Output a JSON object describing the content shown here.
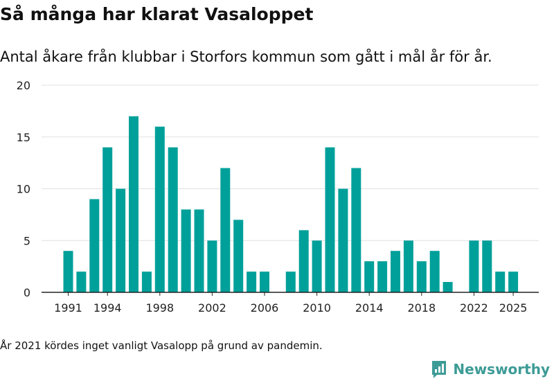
{
  "header": {
    "title": "Så många har klarat Vasaloppet",
    "subtitle": "Antal åkare från klubbar i Storfors kommun som gått i mål år för år."
  },
  "footer": {
    "note": "År 2021 kördes inget vanligt Vasalopp på grund av pandemin.",
    "brand": "Newsworthy",
    "brand_icon": "newsworthy-logo-icon"
  },
  "colors": {
    "bar": "#00a09a",
    "grid": "#e0e0e0",
    "axis": "#222222",
    "brand": "#3d9b96"
  },
  "chart_data": {
    "type": "bar",
    "x": [
      1991,
      1992,
      1993,
      1994,
      1995,
      1996,
      1997,
      1998,
      1999,
      2000,
      2001,
      2002,
      2003,
      2004,
      2005,
      2006,
      2007,
      2008,
      2009,
      2010,
      2011,
      2012,
      2013,
      2014,
      2015,
      2016,
      2017,
      2018,
      2019,
      2020,
      2021,
      2022,
      2023,
      2024,
      2025
    ],
    "values": [
      4,
      2,
      9,
      14,
      10,
      17,
      2,
      16,
      14,
      8,
      8,
      5,
      12,
      7,
      2,
      2,
      0,
      2,
      6,
      5,
      14,
      10,
      12,
      3,
      3,
      4,
      5,
      3,
      4,
      1,
      0,
      5,
      5,
      2,
      2
    ],
    "xticks": [
      1991,
      1994,
      1998,
      2002,
      2006,
      2010,
      2014,
      2018,
      2022,
      2025
    ],
    "yticks": [
      0,
      5,
      10,
      15,
      20
    ],
    "ylim": [
      0,
      20
    ],
    "grid": true,
    "legend": "none"
  }
}
